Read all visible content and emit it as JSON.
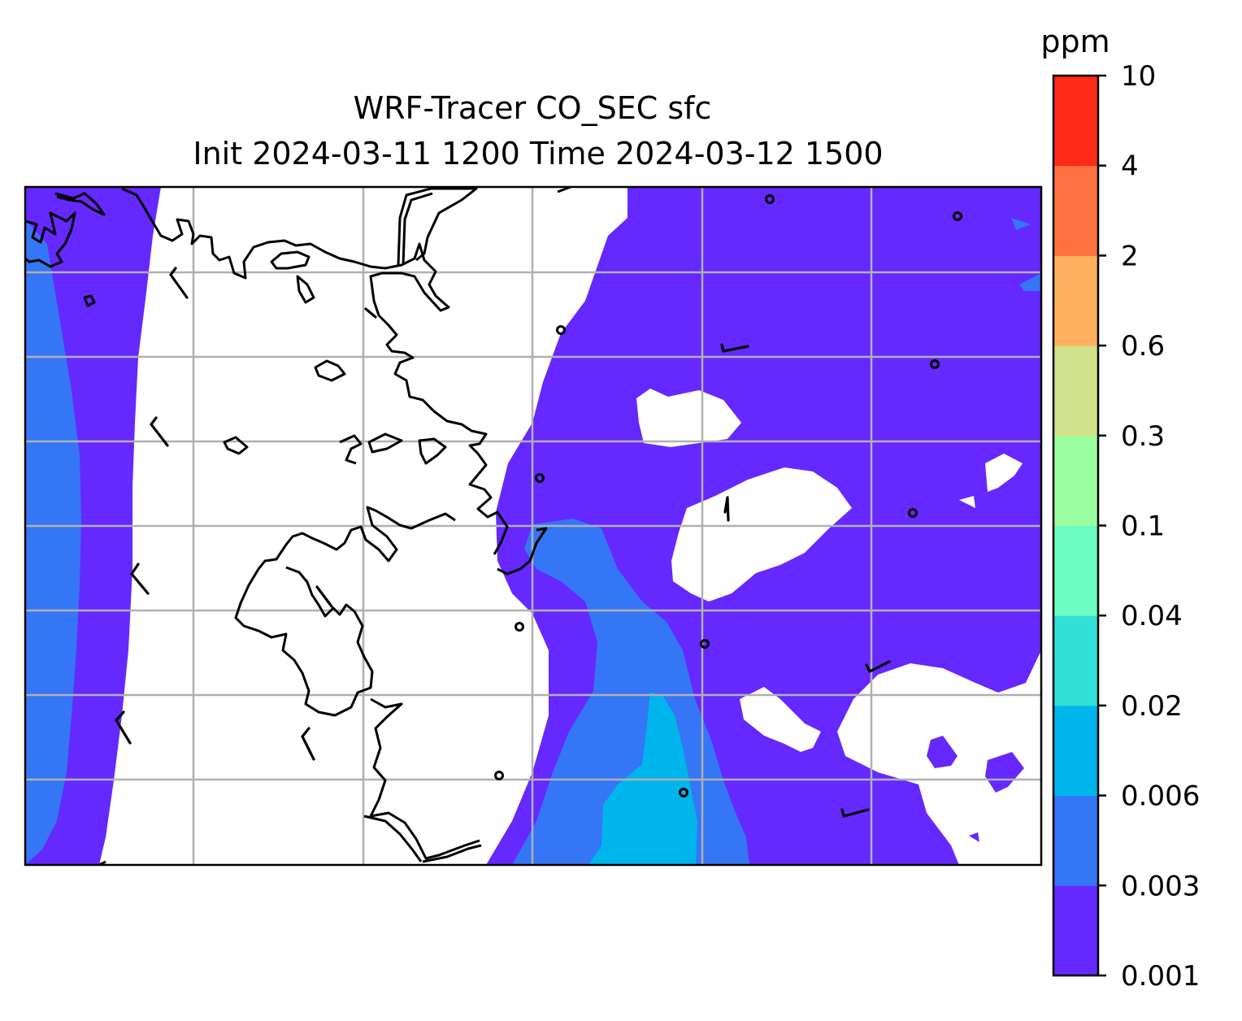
{
  "title": {
    "line1": "WRF-Tracer CO_SEC sfc",
    "line2": "Init 2024-03-11 1200 Time 2024-03-12 1500"
  },
  "colorbar": {
    "unit": "ppm",
    "levels": [
      "0.001",
      "0.003",
      "0.006",
      "0.02",
      "0.04",
      "0.1",
      "0.3",
      "0.6",
      "2",
      "4",
      "10"
    ],
    "colors": [
      "#6528ff",
      "#3476f5",
      "#00b5ec",
      "#32e0d8",
      "#6bfdc2",
      "#9bfea0",
      "#d2e28a",
      "#ffb05e",
      "#ff7140",
      "#ff2a17"
    ]
  },
  "map": {
    "field": "CO_SEC",
    "level": "sfc",
    "background": "#ffffff",
    "gridlines": true,
    "coastlines": true,
    "wind_barbs": true
  }
}
